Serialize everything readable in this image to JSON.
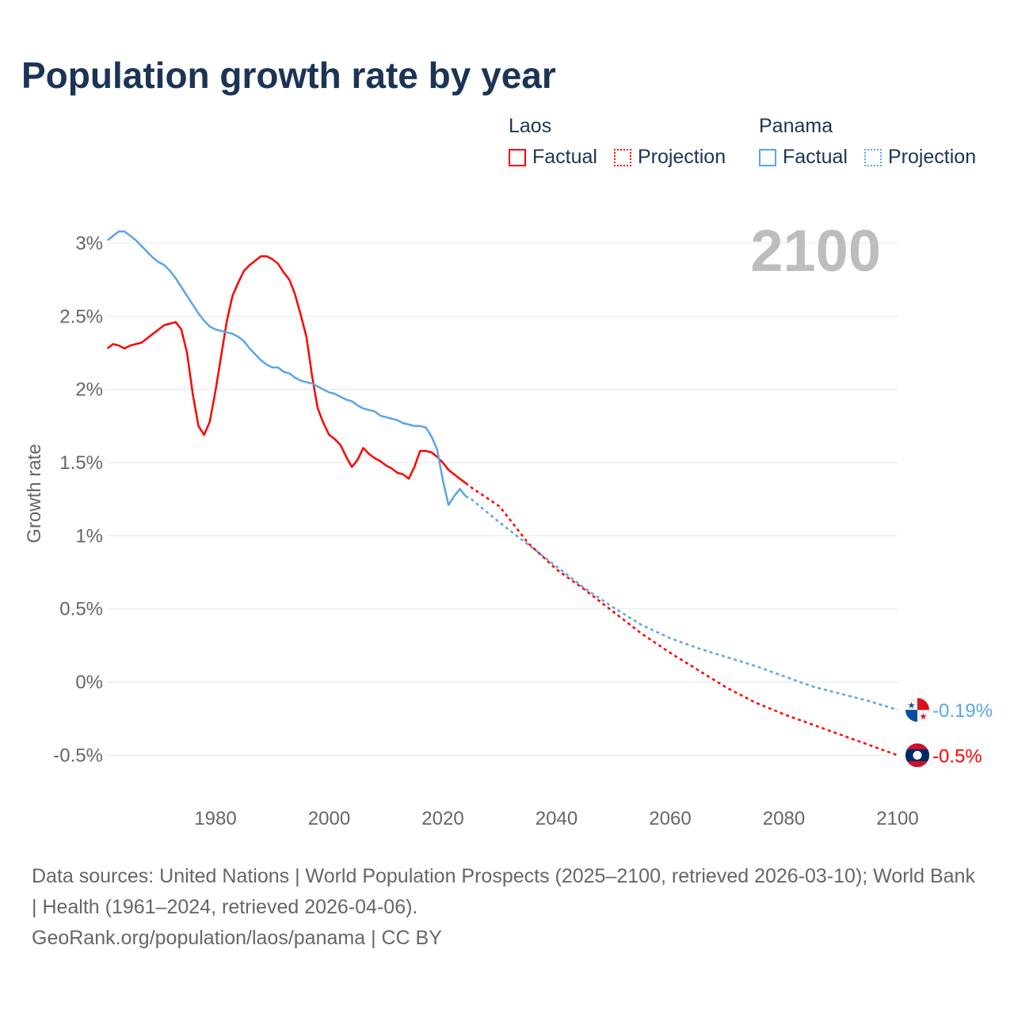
{
  "title": "Population growth rate by year",
  "legend": {
    "groups": [
      {
        "name": "Laos",
        "color": "#ff0000",
        "factual": "Factual",
        "projection": "Projection"
      },
      {
        "name": "Panama",
        "color": "#5aa5ea",
        "factual": "Factual",
        "projection": "Projection"
      }
    ]
  },
  "year_label": "2100",
  "footer": {
    "sources": "Data sources: United Nations | World Population Prospects (2025–2100, retrieved 2026-03-10); World Bank | Health (1961–2024, retrieved 2026-04-06).",
    "credit": "GeoRank.org/population/laos/panama | CC BY"
  },
  "chart_data": {
    "type": "line",
    "title": "Population growth rate by year",
    "xlabel": "",
    "ylabel": "Growth rate",
    "xlim": [
      1961,
      2100
    ],
    "ylim": [
      -0.7,
      3.2
    ],
    "x_ticks": [
      1980,
      2000,
      2020,
      2040,
      2060,
      2080,
      2100
    ],
    "y_ticks": [
      -0.5,
      0,
      0.5,
      1,
      1.5,
      2,
      2.5,
      3
    ],
    "y_tick_labels": [
      "-0.5%",
      "0%",
      "0.5%",
      "1%",
      "1.5%",
      "2%",
      "2.5%",
      "3%"
    ],
    "grid": true,
    "series": [
      {
        "name": "Laos",
        "color": "#ff0000",
        "end_label": "-0.5%",
        "factual": {
          "x": [
            1961,
            1962,
            1963,
            1964,
            1965,
            1966,
            1967,
            1968,
            1969,
            1970,
            1971,
            1972,
            1973,
            1974,
            1975,
            1976,
            1977,
            1978,
            1979,
            1980,
            1981,
            1982,
            1983,
            1984,
            1985,
            1986,
            1987,
            1988,
            1989,
            1990,
            1991,
            1992,
            1993,
            1994,
            1995,
            1996,
            1997,
            1998,
            1999,
            2000,
            2001,
            2002,
            2003,
            2004,
            2005,
            2006,
            2007,
            2008,
            2009,
            2010,
            2011,
            2012,
            2013,
            2014,
            2015,
            2016,
            2017,
            2018,
            2019,
            2020,
            2021,
            2022,
            2023,
            2024
          ],
          "y": [
            2.28,
            2.31,
            2.3,
            2.28,
            2.3,
            2.31,
            2.32,
            2.35,
            2.38,
            2.41,
            2.44,
            2.45,
            2.46,
            2.41,
            2.25,
            1.97,
            1.75,
            1.69,
            1.78,
            1.99,
            2.23,
            2.47,
            2.64,
            2.73,
            2.81,
            2.85,
            2.88,
            2.91,
            2.91,
            2.89,
            2.86,
            2.8,
            2.75,
            2.65,
            2.51,
            2.36,
            2.09,
            1.87,
            1.77,
            1.69,
            1.66,
            1.62,
            1.54,
            1.47,
            1.52,
            1.6,
            1.56,
            1.53,
            1.51,
            1.48,
            1.46,
            1.43,
            1.42,
            1.39,
            1.47,
            1.58,
            1.58,
            1.57,
            1.54,
            1.5,
            1.45,
            1.42,
            1.39,
            1.36
          ]
        },
        "projection": {
          "x": [
            2024,
            2025,
            2030,
            2035,
            2040,
            2045,
            2050,
            2055,
            2060,
            2065,
            2070,
            2075,
            2080,
            2085,
            2090,
            2095,
            2100
          ],
          "y": [
            1.36,
            1.33,
            1.2,
            0.95,
            0.77,
            0.63,
            0.48,
            0.33,
            0.2,
            0.08,
            -0.04,
            -0.14,
            -0.22,
            -0.29,
            -0.36,
            -0.43,
            -0.5
          ]
        }
      },
      {
        "name": "Panama",
        "color": "#5aa5ea",
        "end_label": "-0.19%",
        "factual": {
          "x": [
            1961,
            1962,
            1963,
            1964,
            1965,
            1966,
            1967,
            1968,
            1969,
            1970,
            1971,
            1972,
            1973,
            1974,
            1975,
            1976,
            1977,
            1978,
            1979,
            1980,
            1981,
            1982,
            1983,
            1984,
            1985,
            1986,
            1987,
            1988,
            1989,
            1990,
            1991,
            1992,
            1993,
            1994,
            1995,
            1996,
            1997,
            1998,
            1999,
            2000,
            2001,
            2002,
            2003,
            2004,
            2005,
            2006,
            2007,
            2008,
            2009,
            2010,
            2011,
            2012,
            2013,
            2014,
            2015,
            2016,
            2017,
            2018,
            2019,
            2020,
            2021,
            2022,
            2023,
            2024
          ],
          "y": [
            3.02,
            3.05,
            3.08,
            3.08,
            3.05,
            3.02,
            2.98,
            2.94,
            2.9,
            2.87,
            2.85,
            2.81,
            2.76,
            2.7,
            2.64,
            2.58,
            2.52,
            2.47,
            2.43,
            2.41,
            2.4,
            2.39,
            2.38,
            2.36,
            2.33,
            2.28,
            2.24,
            2.2,
            2.17,
            2.15,
            2.15,
            2.12,
            2.11,
            2.08,
            2.06,
            2.05,
            2.04,
            2.02,
            2.0,
            1.98,
            1.97,
            1.95,
            1.93,
            1.92,
            1.89,
            1.87,
            1.86,
            1.85,
            1.82,
            1.81,
            1.8,
            1.79,
            1.77,
            1.76,
            1.75,
            1.75,
            1.74,
            1.68,
            1.59,
            1.38,
            1.21,
            1.27,
            1.32,
            1.27
          ]
        },
        "projection": {
          "x": [
            2024,
            2025,
            2030,
            2035,
            2040,
            2045,
            2050,
            2055,
            2060,
            2065,
            2070,
            2075,
            2080,
            2085,
            2090,
            2095,
            2100
          ],
          "y": [
            1.27,
            1.25,
            1.09,
            0.94,
            0.79,
            0.64,
            0.51,
            0.39,
            0.3,
            0.23,
            0.17,
            0.11,
            0.04,
            -0.03,
            -0.08,
            -0.13,
            -0.19
          ]
        }
      }
    ]
  }
}
